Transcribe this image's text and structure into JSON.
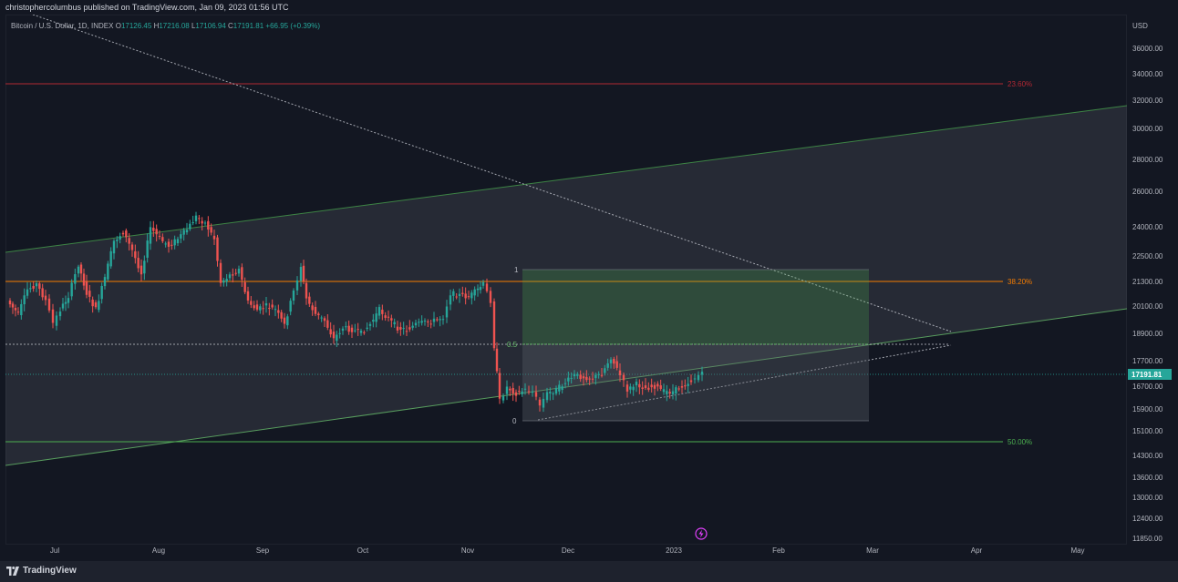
{
  "header": {
    "publisher_line": "christophercolumbus published on TradingView.com, Jan 09, 2023 01:56 UTC"
  },
  "symbol": {
    "name": "Bitcoin / U.S. Dollar, 1D, INDEX",
    "o_label": "O",
    "o_value": "17126.45",
    "h_label": "H",
    "h_value": "17216.08",
    "l_label": "L",
    "l_value": "17106.94",
    "c_label": "C",
    "c_value": "17191.81",
    "change": "+66.95 (+0.39%)",
    "last_price": "17191.81"
  },
  "price_axis": {
    "currency": "USD",
    "ticks": [
      "36000.00",
      "34000.00",
      "32000.00",
      "30000.00",
      "28000.00",
      "26000.00",
      "24000.00",
      "22500.00",
      "21300.00",
      "20100.00",
      "18900.00",
      "17700.00",
      "16700.00",
      "15900.00",
      "15100.00",
      "14300.00",
      "13600.00",
      "13000.00",
      "12400.00",
      "11850.00"
    ]
  },
  "time_axis": {
    "ticks": [
      "Jul",
      "Aug",
      "Sep",
      "Oct",
      "Nov",
      "Dec",
      "2023",
      "Feb",
      "Mar",
      "Apr",
      "May"
    ]
  },
  "fib_levels": [
    {
      "label": "23.60%",
      "color": "#b22833"
    },
    {
      "label": "38.20%",
      "color": "#f57c00"
    },
    {
      "label": "50.00%",
      "color": "#4caf50"
    }
  ],
  "box_labels": {
    "top": "1",
    "mid": "0.5",
    "bottom": "0"
  },
  "colors": {
    "up": "#26a69a",
    "down": "#ef5350",
    "channel": "#4caf50",
    "background": "#131722"
  },
  "footer": {
    "brand": "TradingView"
  },
  "icons": {
    "replay": "lightning-icon",
    "logo": "tradingview-logo-icon"
  }
}
